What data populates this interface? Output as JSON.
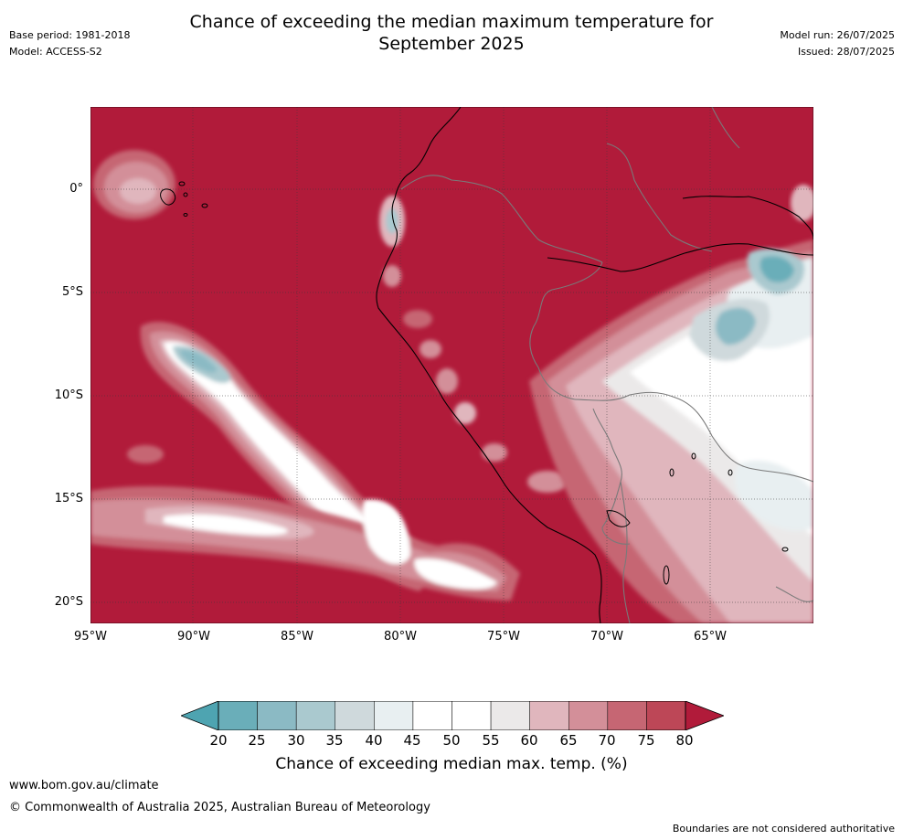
{
  "header": {
    "title_line1": "Chance of exceeding the median maximum temperature for",
    "title_line2": "September 2025",
    "base_period": "Base period: 1981-2018",
    "model": "Model: ACCESS-S2",
    "model_run": "Model run: 26/07/2025",
    "issued": "Issued: 28/07/2025"
  },
  "map": {
    "lon_ticks": [
      "95°W",
      "90°W",
      "85°W",
      "80°W",
      "75°W",
      "70°W",
      "65°W"
    ],
    "lat_ticks": [
      "0°",
      "5°S",
      "10°S",
      "15°S",
      "20°S"
    ],
    "background_color": "#b11b3a",
    "coastline_color": "#000000",
    "border_color": "#7a7a7a"
  },
  "colorbar": {
    "title": "Chance of exceeding median max. temp. (%)",
    "ticks": [
      "20",
      "25",
      "30",
      "35",
      "40",
      "45",
      "50",
      "55",
      "60",
      "65",
      "70",
      "75",
      "80"
    ],
    "colors": [
      "#6aaeb9",
      "#8bbac4",
      "#aac9cf",
      "#cfd9dc",
      "#e8eff1",
      "#ffffff",
      "#ffffff",
      "#ebe9e9",
      "#e0b6bd",
      "#d38f99",
      "#c66673",
      "#bd4757"
    ],
    "under_color": "#4ea4b1",
    "over_color": "#b11b3a"
  },
  "footer": {
    "website": "www.bom.gov.au/climate",
    "copyright": "© Commonwealth of Australia 2025, Australian Bureau of Meteorology",
    "disclaimer": "Boundaries are not considered authoritative"
  }
}
